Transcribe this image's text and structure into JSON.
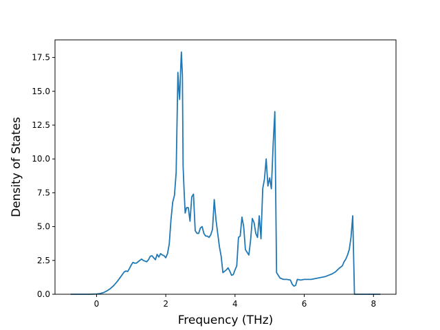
{
  "chart_data": {
    "type": "line",
    "title": "",
    "xlabel": "Frequency (THz)",
    "ylabel": "Density of States",
    "xlim": [
      -1.2,
      8.65
    ],
    "ylim": [
      0.0,
      18.8
    ],
    "xticks": [
      0,
      2,
      4,
      6,
      8
    ],
    "xtick_labels": [
      "0",
      "2",
      "4",
      "6",
      "8"
    ],
    "yticks": [
      0.0,
      2.5,
      5.0,
      7.5,
      10.0,
      12.5,
      15.0,
      17.5
    ],
    "ytick_labels": [
      "0.0",
      "2.5",
      "5.0",
      "7.5",
      "10.0",
      "12.5",
      "15.0",
      "17.5"
    ],
    "grid": false,
    "legend": "none",
    "series": [
      {
        "color": "#1f77b4",
        "x": [
          -0.75,
          -0.2,
          0.0,
          0.1,
          0.2,
          0.3,
          0.4,
          0.5,
          0.6,
          0.7,
          0.8,
          0.85,
          0.9,
          0.95,
          1.0,
          1.05,
          1.1,
          1.15,
          1.2,
          1.3,
          1.35,
          1.4,
          1.45,
          1.5,
          1.55,
          1.6,
          1.65,
          1.7,
          1.75,
          1.8,
          1.85,
          1.9,
          1.95,
          2.0,
          2.05,
          2.1,
          2.15,
          2.2,
          2.25,
          2.3,
          2.35,
          2.38,
          2.4,
          2.42,
          2.45,
          2.48,
          2.5,
          2.53,
          2.56,
          2.6,
          2.65,
          2.7,
          2.75,
          2.8,
          2.85,
          2.9,
          2.95,
          3.0,
          3.05,
          3.1,
          3.15,
          3.2,
          3.25,
          3.3,
          3.35,
          3.4,
          3.45,
          3.5,
          3.55,
          3.6,
          3.65,
          3.7,
          3.75,
          3.8,
          3.85,
          3.9,
          3.95,
          4.0,
          4.05,
          4.1,
          4.15,
          4.2,
          4.25,
          4.3,
          4.35,
          4.4,
          4.45,
          4.5,
          4.55,
          4.6,
          4.65,
          4.7,
          4.75,
          4.8,
          4.85,
          4.9,
          4.95,
          5.0,
          5.05,
          5.1,
          5.15,
          5.2,
          5.3,
          5.4,
          5.5,
          5.6,
          5.65,
          5.7,
          5.75,
          5.8,
          5.9,
          6.0,
          6.2,
          6.4,
          6.6,
          6.7,
          6.8,
          6.9,
          7.0,
          7.05,
          7.1,
          7.15,
          7.2,
          7.25,
          7.3,
          7.35,
          7.4,
          7.45,
          7.5,
          7.6,
          8.2
        ],
        "y": [
          0.0,
          0.0,
          0.02,
          0.05,
          0.12,
          0.25,
          0.42,
          0.65,
          0.95,
          1.3,
          1.65,
          1.72,
          1.68,
          1.9,
          2.15,
          2.35,
          2.3,
          2.3,
          2.4,
          2.6,
          2.5,
          2.45,
          2.4,
          2.55,
          2.8,
          2.85,
          2.7,
          2.55,
          2.95,
          2.75,
          3.0,
          2.9,
          2.85,
          2.7,
          3.0,
          3.7,
          5.5,
          6.8,
          7.3,
          9.0,
          16.4,
          15.0,
          14.4,
          16.0,
          17.9,
          16.2,
          9.5,
          7.6,
          6.0,
          6.4,
          6.4,
          5.4,
          7.2,
          7.4,
          4.7,
          4.5,
          4.5,
          4.9,
          5.0,
          4.5,
          4.3,
          4.3,
          4.2,
          4.4,
          4.8,
          7.0,
          5.5,
          4.5,
          3.5,
          2.8,
          1.6,
          1.7,
          1.8,
          1.95,
          1.7,
          1.4,
          1.45,
          1.8,
          2.1,
          4.2,
          4.3,
          5.7,
          5.0,
          3.3,
          3.1,
          2.9,
          4.0,
          5.6,
          5.3,
          4.5,
          4.2,
          5.8,
          4.1,
          7.8,
          8.5,
          10.0,
          8.0,
          8.6,
          7.8,
          11.0,
          13.5,
          1.6,
          1.2,
          1.1,
          1.1,
          1.05,
          0.75,
          0.6,
          0.65,
          1.1,
          1.05,
          1.1,
          1.1,
          1.2,
          1.3,
          1.4,
          1.5,
          1.65,
          1.9,
          2.0,
          2.1,
          2.4,
          2.6,
          2.9,
          3.3,
          4.2,
          5.8,
          0.0,
          0.0,
          0.0,
          0.0
        ]
      }
    ]
  }
}
